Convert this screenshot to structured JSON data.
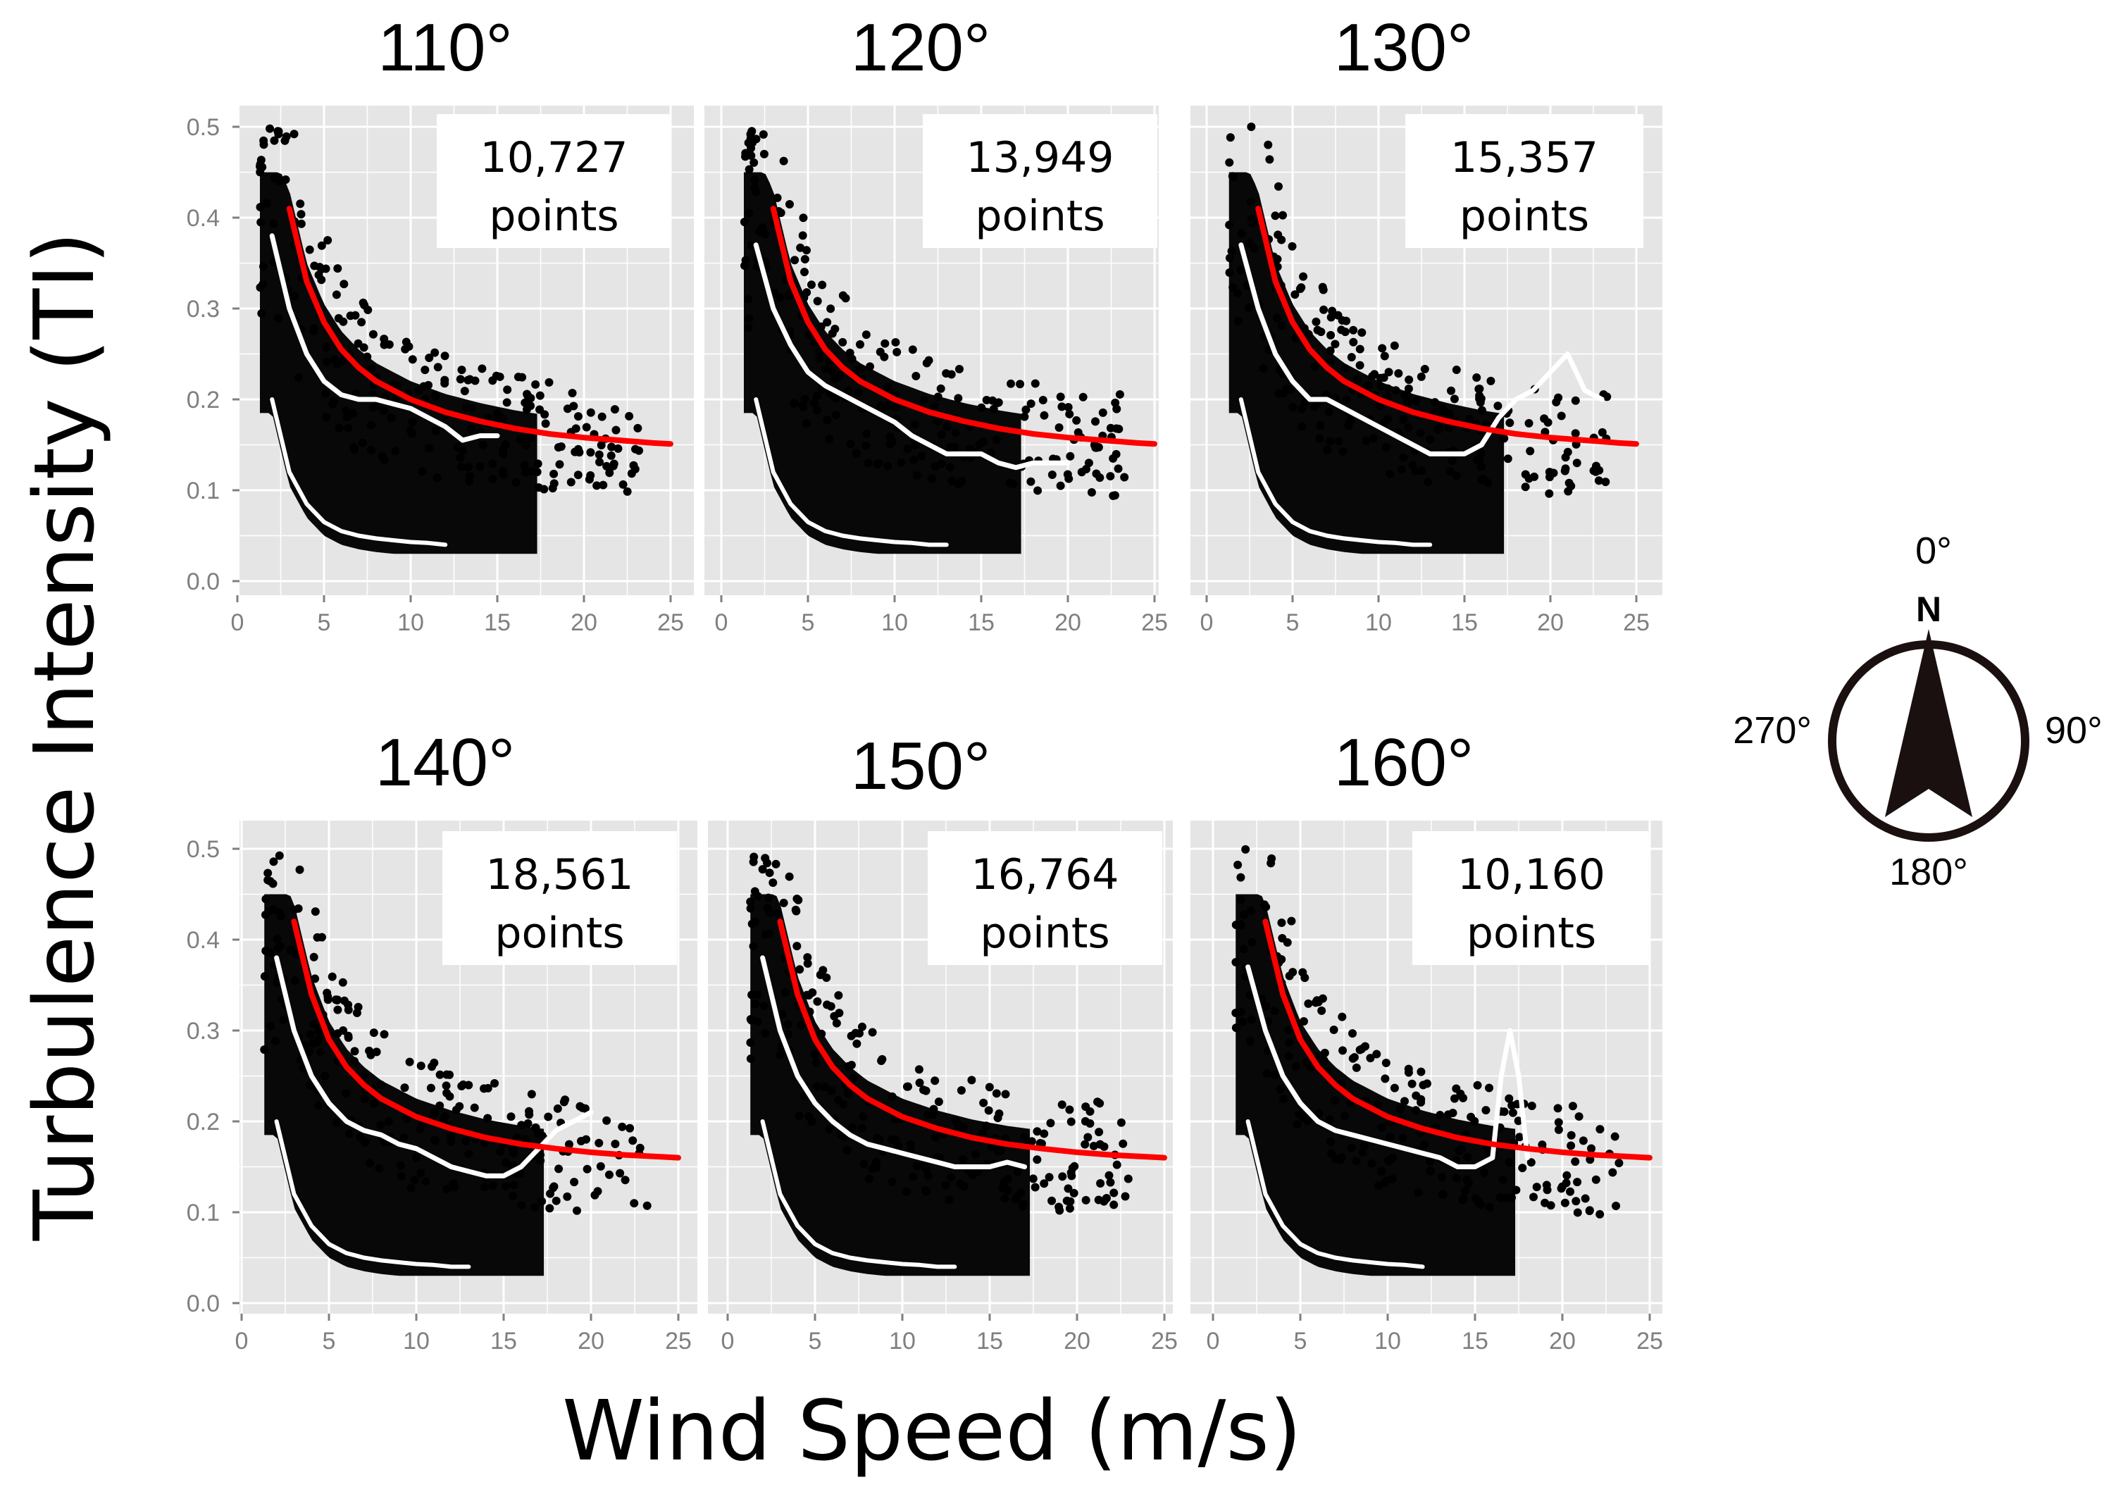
{
  "ylabel": "Turbulence Intensity (TI)",
  "xlabel": "Wind Speed (m/s)",
  "compass": {
    "north_letter": "N",
    "top": "0°",
    "right": "90°",
    "bottom": "180°",
    "left": "270°"
  },
  "colors": {
    "panel_bg": "#e5e5e5",
    "grid": "#ffffff",
    "points": "#000000",
    "fit_line": "#ff0000",
    "mean_line": "#ffffff"
  },
  "chart_data": [
    {
      "type": "scatter",
      "title": "110°",
      "annotation": {
        "count": "10,727",
        "unit": "points"
      },
      "xlabel": "Wind Speed (m/s)",
      "ylabel": "Turbulence Intensity (TI)",
      "xlim": [
        0,
        25
      ],
      "ylim": [
        0,
        0.5
      ],
      "x_ticks": [
        "0",
        "5",
        "10",
        "15",
        "20",
        "25"
      ],
      "y_ticks": [
        "0.0",
        "0.1",
        "0.2",
        "0.3",
        "0.4",
        "0.5"
      ],
      "grid": true,
      "series": [
        {
          "name": "fit (red)",
          "x": [
            3,
            4,
            5,
            6,
            7,
            8,
            9,
            10,
            12,
            14,
            16,
            18,
            20,
            22,
            24,
            25
          ],
          "y": [
            0.41,
            0.33,
            0.285,
            0.255,
            0.235,
            0.22,
            0.21,
            0.2,
            0.186,
            0.176,
            0.168,
            0.162,
            0.158,
            0.155,
            0.152,
            0.151
          ]
        },
        {
          "name": "mean (white)",
          "x": [
            2,
            3,
            4,
            5,
            6,
            7,
            8,
            9,
            10,
            11,
            12,
            13,
            14,
            15
          ],
          "y": [
            0.38,
            0.3,
            0.25,
            0.22,
            0.205,
            0.2,
            0.2,
            0.195,
            0.19,
            0.18,
            0.17,
            0.155,
            0.16,
            0.16
          ]
        },
        {
          "name": "lower bound (white)",
          "x": [
            2,
            3,
            4,
            5,
            6,
            7,
            8,
            9,
            10,
            11,
            12
          ],
          "y": [
            0.2,
            0.12,
            0.085,
            0.065,
            0.055,
            0.05,
            0.047,
            0.045,
            0.043,
            0.042,
            0.04
          ]
        }
      ]
    },
    {
      "type": "scatter",
      "title": "120°",
      "annotation": {
        "count": "13,949",
        "unit": "points"
      },
      "xlabel": "Wind Speed (m/s)",
      "ylabel": "Turbulence Intensity (TI)",
      "xlim": [
        0,
        25
      ],
      "ylim": [
        0,
        0.5
      ],
      "x_ticks": [
        "0",
        "5",
        "10",
        "15",
        "20",
        "25"
      ],
      "y_ticks": [
        "0.0",
        "0.1",
        "0.2",
        "0.3",
        "0.4",
        "0.5"
      ],
      "grid": true,
      "series": [
        {
          "name": "fit (red)",
          "x": [
            3,
            4,
            5,
            6,
            7,
            8,
            9,
            10,
            12,
            14,
            16,
            18,
            20,
            22,
            24,
            25
          ],
          "y": [
            0.41,
            0.33,
            0.285,
            0.255,
            0.235,
            0.22,
            0.21,
            0.2,
            0.186,
            0.176,
            0.168,
            0.162,
            0.158,
            0.155,
            0.152,
            0.151
          ]
        },
        {
          "name": "mean (white)",
          "x": [
            2,
            3,
            4,
            5,
            6,
            7,
            8,
            9,
            10,
            11,
            12,
            13,
            14,
            15,
            16,
            17,
            18,
            19,
            20
          ],
          "y": [
            0.37,
            0.3,
            0.26,
            0.23,
            0.215,
            0.205,
            0.195,
            0.185,
            0.175,
            0.16,
            0.15,
            0.14,
            0.14,
            0.14,
            0.13,
            0.125,
            0.13,
            0.13,
            0.13
          ]
        },
        {
          "name": "lower bound (white)",
          "x": [
            2,
            3,
            4,
            5,
            6,
            7,
            8,
            9,
            10,
            11,
            12,
            13
          ],
          "y": [
            0.2,
            0.12,
            0.085,
            0.065,
            0.055,
            0.05,
            0.047,
            0.045,
            0.043,
            0.042,
            0.04,
            0.04
          ]
        }
      ]
    },
    {
      "type": "scatter",
      "title": "130°",
      "annotation": {
        "count": "15,357",
        "unit": "points"
      },
      "xlabel": "Wind Speed (m/s)",
      "ylabel": "Turbulence Intensity (TI)",
      "xlim": [
        0,
        25
      ],
      "ylim": [
        0,
        0.5
      ],
      "x_ticks": [
        "0",
        "5",
        "10",
        "15",
        "20",
        "25"
      ],
      "y_ticks": [
        "0.0",
        "0.1",
        "0.2",
        "0.3",
        "0.4",
        "0.5"
      ],
      "grid": true,
      "series": [
        {
          "name": "fit (red)",
          "x": [
            3,
            4,
            5,
            6,
            7,
            8,
            9,
            10,
            12,
            14,
            16,
            18,
            20,
            22,
            24,
            25
          ],
          "y": [
            0.41,
            0.33,
            0.285,
            0.255,
            0.235,
            0.22,
            0.21,
            0.2,
            0.186,
            0.176,
            0.168,
            0.162,
            0.158,
            0.155,
            0.152,
            0.151
          ]
        },
        {
          "name": "mean (white)",
          "x": [
            2,
            3,
            4,
            5,
            6,
            7,
            8,
            9,
            10,
            11,
            12,
            13,
            14,
            15,
            16,
            17,
            18,
            19,
            20,
            21,
            22,
            23
          ],
          "y": [
            0.37,
            0.3,
            0.25,
            0.22,
            0.2,
            0.2,
            0.19,
            0.18,
            0.17,
            0.16,
            0.15,
            0.14,
            0.14,
            0.14,
            0.15,
            0.18,
            0.2,
            0.21,
            0.23,
            0.25,
            0.21,
            0.2
          ]
        },
        {
          "name": "lower bound (white)",
          "x": [
            2,
            3,
            4,
            5,
            6,
            7,
            8,
            9,
            10,
            11,
            12,
            13
          ],
          "y": [
            0.2,
            0.12,
            0.085,
            0.065,
            0.055,
            0.05,
            0.047,
            0.045,
            0.043,
            0.042,
            0.04,
            0.04
          ]
        }
      ]
    },
    {
      "type": "scatter",
      "title": "140°",
      "annotation": {
        "count": "18,561",
        "unit": "points"
      },
      "xlabel": "Wind Speed (m/s)",
      "ylabel": "Turbulence Intensity (TI)",
      "xlim": [
        0,
        25
      ],
      "ylim": [
        0,
        0.5
      ],
      "x_ticks": [
        "0",
        "5",
        "10",
        "15",
        "20",
        "25"
      ],
      "y_ticks": [
        "0.0",
        "0.1",
        "0.2",
        "0.3",
        "0.4",
        "0.5"
      ],
      "grid": true,
      "series": [
        {
          "name": "fit (red)",
          "x": [
            3,
            4,
            5,
            6,
            7,
            8,
            9,
            10,
            12,
            14,
            16,
            18,
            20,
            22,
            24,
            25
          ],
          "y": [
            0.42,
            0.34,
            0.29,
            0.26,
            0.24,
            0.225,
            0.215,
            0.205,
            0.192,
            0.182,
            0.175,
            0.17,
            0.166,
            0.163,
            0.161,
            0.16
          ]
        },
        {
          "name": "mean (white)",
          "x": [
            2,
            3,
            4,
            5,
            6,
            7,
            8,
            9,
            10,
            11,
            12,
            13,
            14,
            15,
            16,
            17,
            18,
            19,
            20
          ],
          "y": [
            0.38,
            0.3,
            0.25,
            0.22,
            0.2,
            0.19,
            0.185,
            0.175,
            0.17,
            0.16,
            0.15,
            0.145,
            0.14,
            0.14,
            0.15,
            0.17,
            0.19,
            0.2,
            0.21
          ]
        },
        {
          "name": "lower bound (white)",
          "x": [
            2,
            3,
            4,
            5,
            6,
            7,
            8,
            9,
            10,
            11,
            12,
            13
          ],
          "y": [
            0.2,
            0.12,
            0.085,
            0.065,
            0.055,
            0.05,
            0.047,
            0.045,
            0.043,
            0.042,
            0.04,
            0.04
          ]
        }
      ]
    },
    {
      "type": "scatter",
      "title": "150°",
      "annotation": {
        "count": "16,764",
        "unit": "points"
      },
      "xlabel": "Wind Speed (m/s)",
      "ylabel": "Turbulence Intensity (TI)",
      "xlim": [
        0,
        25
      ],
      "ylim": [
        0,
        0.5
      ],
      "x_ticks": [
        "0",
        "5",
        "10",
        "15",
        "20",
        "25"
      ],
      "y_ticks": [
        "0.0",
        "0.1",
        "0.2",
        "0.3",
        "0.4",
        "0.5"
      ],
      "grid": true,
      "series": [
        {
          "name": "fit (red)",
          "x": [
            3,
            4,
            5,
            6,
            7,
            8,
            9,
            10,
            12,
            14,
            16,
            18,
            20,
            22,
            24,
            25
          ],
          "y": [
            0.42,
            0.34,
            0.29,
            0.26,
            0.24,
            0.225,
            0.215,
            0.205,
            0.192,
            0.182,
            0.175,
            0.17,
            0.166,
            0.163,
            0.161,
            0.16
          ]
        },
        {
          "name": "mean (white)",
          "x": [
            2,
            3,
            4,
            5,
            6,
            7,
            8,
            9,
            10,
            11,
            12,
            13,
            14,
            15,
            16,
            17
          ],
          "y": [
            0.38,
            0.3,
            0.25,
            0.22,
            0.2,
            0.185,
            0.175,
            0.17,
            0.165,
            0.16,
            0.155,
            0.15,
            0.15,
            0.15,
            0.155,
            0.15
          ]
        },
        {
          "name": "lower bound (white)",
          "x": [
            2,
            3,
            4,
            5,
            6,
            7,
            8,
            9,
            10,
            11,
            12,
            13
          ],
          "y": [
            0.2,
            0.12,
            0.085,
            0.065,
            0.055,
            0.05,
            0.047,
            0.045,
            0.043,
            0.042,
            0.04,
            0.04
          ]
        }
      ]
    },
    {
      "type": "scatter",
      "title": "160°",
      "annotation": {
        "count": "10,160",
        "unit": "points"
      },
      "xlabel": "Wind Speed (m/s)",
      "ylabel": "Turbulence Intensity (TI)",
      "xlim": [
        0,
        25
      ],
      "ylim": [
        0,
        0.5
      ],
      "x_ticks": [
        "0",
        "5",
        "10",
        "15",
        "20",
        "25"
      ],
      "y_ticks": [
        "0.0",
        "0.1",
        "0.2",
        "0.3",
        "0.4",
        "0.5"
      ],
      "grid": true,
      "series": [
        {
          "name": "fit (red)",
          "x": [
            3,
            4,
            5,
            6,
            7,
            8,
            9,
            10,
            12,
            14,
            16,
            18,
            20,
            22,
            24,
            25
          ],
          "y": [
            0.42,
            0.34,
            0.29,
            0.26,
            0.24,
            0.225,
            0.215,
            0.205,
            0.192,
            0.182,
            0.175,
            0.17,
            0.166,
            0.163,
            0.161,
            0.16
          ]
        },
        {
          "name": "mean (white)",
          "x": [
            2,
            3,
            4,
            5,
            6,
            7,
            8,
            9,
            10,
            11,
            12,
            13,
            14,
            15,
            16,
            16.5,
            17,
            17.5,
            18
          ],
          "y": [
            0.37,
            0.3,
            0.25,
            0.22,
            0.2,
            0.19,
            0.185,
            0.18,
            0.175,
            0.17,
            0.165,
            0.16,
            0.15,
            0.15,
            0.16,
            0.25,
            0.3,
            0.25,
            0.16
          ]
        },
        {
          "name": "lower bound (white)",
          "x": [
            2,
            3,
            4,
            5,
            6,
            7,
            8,
            9,
            10,
            11,
            12
          ],
          "y": [
            0.2,
            0.12,
            0.085,
            0.065,
            0.055,
            0.05,
            0.047,
            0.045,
            0.043,
            0.042,
            0.04
          ]
        }
      ]
    }
  ]
}
